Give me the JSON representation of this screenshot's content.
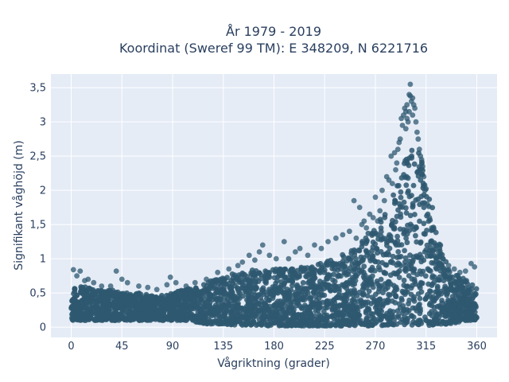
{
  "chart_data": {
    "type": "scatter",
    "title": [
      "År 1979 - 2019",
      "Koordinat (Sweref 99 TM): E 348209, N 6221716"
    ],
    "xlabel": "Vågriktning (grader)",
    "ylabel": "Signifikant våghöjd (m)",
    "xlim": [
      -18,
      378
    ],
    "ylim": [
      -0.15,
      3.7
    ],
    "x_ticks": [
      0,
      45,
      90,
      135,
      180,
      225,
      270,
      315,
      360
    ],
    "x_tick_labels": [
      "0",
      "45",
      "90",
      "135",
      "180",
      "225",
      "270",
      "315",
      "360"
    ],
    "y_ticks": [
      0,
      0.5,
      1,
      1.5,
      2,
      2.5,
      3,
      3.5
    ],
    "y_tick_labels": [
      "0",
      "0,5",
      "1",
      "1,5",
      "2",
      "2,5",
      "3",
      "3,5"
    ],
    "grid": true,
    "marker_color": "#2e5870",
    "plot_bg": "#e5ecf6",
    "envelope": {
      "x": [
        0,
        10,
        20,
        30,
        40,
        45,
        60,
        75,
        90,
        100,
        110,
        120,
        135,
        150,
        165,
        180,
        195,
        210,
        225,
        240,
        255,
        265,
        275,
        285,
        290,
        295,
        300,
        305,
        310,
        315,
        320,
        325,
        330,
        335,
        340,
        345,
        350,
        355,
        360
      ],
      "low": [
        0.1,
        0.1,
        0.1,
        0.1,
        0.1,
        0.1,
        0.1,
        0.1,
        0.1,
        0.1,
        0.08,
        0.05,
        0.04,
        0.03,
        0.02,
        0.02,
        0.02,
        0.02,
        0.02,
        0.02,
        0.02,
        0.02,
        0.02,
        0.02,
        0.02,
        0.02,
        0.02,
        0.02,
        0.02,
        0.02,
        0.03,
        0.03,
        0.04,
        0.05,
        0.06,
        0.08,
        0.1,
        0.1,
        0.1
      ],
      "high": [
        0.6,
        0.6,
        0.55,
        0.55,
        0.55,
        0.5,
        0.5,
        0.45,
        0.5,
        0.55,
        0.6,
        0.65,
        0.75,
        0.8,
        0.85,
        0.85,
        0.85,
        0.9,
        0.95,
        1.05,
        1.2,
        1.4,
        1.6,
        1.9,
        2.1,
        2.4,
        2.6,
        2.7,
        2.5,
        2.2,
        1.8,
        1.4,
        1.05,
        0.9,
        0.8,
        0.75,
        0.7,
        0.65,
        0.6
      ]
    },
    "outliers": {
      "x": [
        2,
        5,
        8,
        12,
        15,
        20,
        27,
        35,
        40,
        45,
        50,
        60,
        68,
        76,
        85,
        88,
        93,
        102,
        110,
        120,
        130,
        140,
        148,
        152,
        158,
        163,
        167,
        170,
        176,
        182,
        189,
        193,
        199,
        203,
        210,
        216,
        222,
        228,
        235,
        241,
        247,
        251,
        253,
        256,
        258,
        260,
        262,
        265,
        268,
        270,
        272,
        274,
        276,
        278,
        280,
        282,
        284,
        285,
        287,
        288,
        289,
        290,
        291,
        292,
        293,
        294,
        295,
        296,
        297,
        297,
        298,
        298,
        299,
        300,
        300,
        301,
        301,
        302,
        303,
        303,
        304,
        305,
        306,
        307,
        308,
        309,
        310,
        311,
        312,
        313,
        314,
        316,
        318,
        320,
        323,
        326,
        330,
        335,
        340,
        345,
        350,
        355,
        358
      ],
      "y": [
        0.84,
        0.75,
        0.82,
        0.68,
        0.7,
        0.65,
        0.6,
        0.6,
        0.82,
        0.7,
        0.65,
        0.6,
        0.58,
        0.55,
        0.62,
        0.73,
        0.65,
        0.6,
        0.65,
        0.7,
        0.8,
        0.85,
        0.9,
        0.95,
        1.05,
        0.98,
        1.1,
        1.2,
        1.05,
        1.0,
        1.25,
        1.0,
        1.1,
        1.15,
        1.05,
        1.2,
        1.15,
        1.25,
        1.3,
        1.35,
        1.4,
        1.85,
        1.3,
        1.75,
        1.5,
        1.55,
        1.45,
        1.65,
        1.6,
        1.9,
        1.55,
        1.7,
        2.0,
        1.85,
        2.2,
        2.15,
        2.5,
        2.1,
        2.55,
        2.3,
        2.4,
        2.6,
        2.7,
        2.75,
        3.05,
        2.95,
        3.1,
        3.2,
        3.15,
        2.9,
        3.05,
        3.25,
        3.0,
        3.15,
        3.4,
        3.38,
        3.55,
        3.3,
        3.35,
        3.1,
        3.25,
        3.2,
        3.0,
        2.85,
        2.75,
        2.6,
        2.5,
        2.45,
        2.35,
        2.2,
        2.0,
        1.8,
        1.6,
        1.45,
        1.2,
        1.1,
        1.0,
        0.9,
        0.85,
        0.8,
        0.82,
        0.93,
        0.88
      ]
    },
    "n_dense_points": 3200
  }
}
